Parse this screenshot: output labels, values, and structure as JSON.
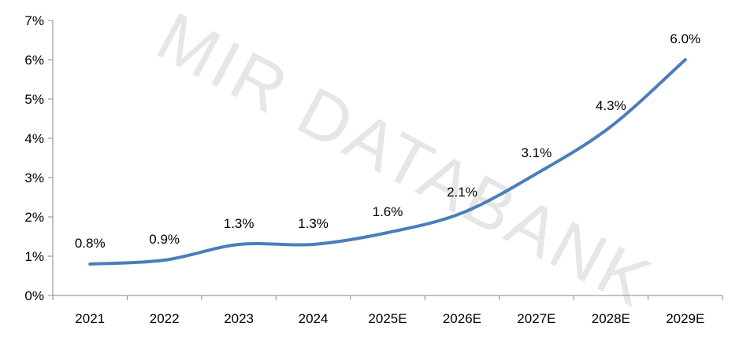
{
  "watermark": {
    "text": "MIR DATABANK",
    "color": "#e6e6e6"
  },
  "chart_data": {
    "type": "line",
    "title": "",
    "xlabel": "",
    "ylabel": "",
    "categories": [
      "2021",
      "2022",
      "2023",
      "2024",
      "2025E",
      "2026E",
      "2027E",
      "2028E",
      "2029E"
    ],
    "series": [
      {
        "values": [
          0.8,
          0.9,
          1.3,
          1.3,
          1.6,
          2.1,
          3.1,
          4.3,
          6.0
        ],
        "labels": [
          "0.8%",
          "0.9%",
          "1.3%",
          "1.3%",
          "1.6%",
          "2.1%",
          "3.1%",
          "4.3%",
          "6.0%"
        ],
        "color": "#4a7ebb"
      }
    ],
    "ylim": [
      0,
      7
    ],
    "yticks": [
      0,
      1,
      2,
      3,
      4,
      5,
      6,
      7
    ],
    "ytick_labels": [
      "0%",
      "1%",
      "2%",
      "3%",
      "4%",
      "5%",
      "6%",
      "7%"
    ],
    "grid": false,
    "legend": "none",
    "axis_color": "#898989"
  }
}
